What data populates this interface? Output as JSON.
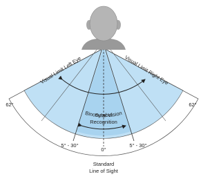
{
  "labels": {
    "left_limit": "Visual Limit Left Eye",
    "right_limit": "Visual Limit Right Eye",
    "binocular": "Binocular Vision",
    "symbol": [
      "Symbol",
      "Recognition"
    ],
    "left_outer_angle": "62°",
    "right_outer_angle": "62°",
    "left_symbol_angle": "5° - 30°",
    "center_angle": "0°",
    "right_symbol_angle": "5° - 30°",
    "line_of_sight": [
      "Standard",
      "Line of Sight"
    ]
  }
}
